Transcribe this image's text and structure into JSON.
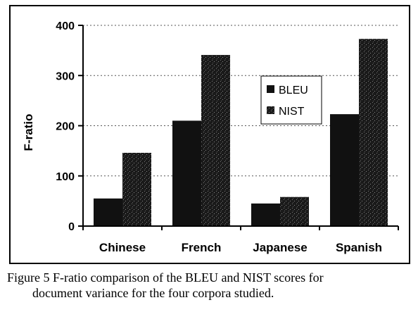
{
  "chart_data": {
    "type": "bar",
    "categories": [
      "Chinese",
      "French",
      "Japanese",
      "Spanish"
    ],
    "series": [
      {
        "name": "BLEU",
        "values": [
          55,
          210,
          45,
          223
        ]
      },
      {
        "name": "NIST",
        "values": [
          146,
          341,
          58,
          373
        ]
      }
    ],
    "xlabel": "",
    "ylabel": "F-ratio",
    "ylim": [
      0,
      400
    ],
    "yticks": [
      0,
      100,
      200,
      300,
      400
    ],
    "grid": true,
    "legend": "center-right, inside plot"
  },
  "colors": {
    "BLEU": "#111111",
    "NIST": "#1c1c1c",
    "background": "#ffffff"
  },
  "caption": {
    "line1": "Figure 5 F-ratio comparison of the BLEU and NIST scores for",
    "line2": "document variance for the four corpora studied."
  }
}
